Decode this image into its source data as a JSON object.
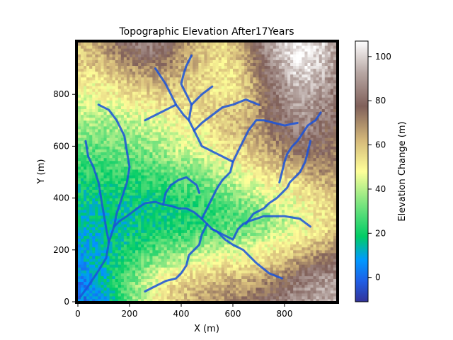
{
  "chart_data": {
    "type": "heatmap",
    "title": "Topographic Elevation After17Years",
    "xlabel": "X (m)",
    "ylabel": "Y (m)",
    "xlim": [
      0,
      1000
    ],
    "ylim": [
      0,
      1000
    ],
    "x_ticks": [
      0,
      200,
      400,
      600,
      800
    ],
    "y_ticks": [
      0,
      200,
      400,
      600,
      800
    ],
    "grid": false,
    "colormap": "terrain",
    "colorbar": {
      "label": "Elevation Change (m)",
      "range": [
        -11,
        107
      ],
      "ticks": [
        0,
        20,
        40,
        60,
        80,
        100
      ]
    },
    "field_grid": {
      "rows": 20,
      "cols": 20
    },
    "description_of_values": "Elevation in meters on a regular grid; low valleys in lower-left, high ridge in upper-right",
    "elevation_rows_bottom_to_top": [
      [
        2,
        4,
        10,
        22,
        34,
        44,
        52,
        58,
        62,
        66,
        68,
        70,
        72,
        76,
        80,
        84,
        88,
        90,
        92,
        96
      ],
      [
        4,
        6,
        14,
        24,
        34,
        42,
        50,
        56,
        60,
        62,
        64,
        66,
        68,
        70,
        74,
        80,
        86,
        88,
        90,
        94
      ],
      [
        6,
        8,
        14,
        22,
        30,
        38,
        44,
        50,
        54,
        56,
        58,
        60,
        60,
        62,
        66,
        70,
        78,
        84,
        86,
        88
      ],
      [
        8,
        10,
        14,
        20,
        26,
        32,
        36,
        40,
        44,
        46,
        48,
        50,
        50,
        52,
        56,
        60,
        66,
        72,
        76,
        80
      ],
      [
        10,
        12,
        14,
        18,
        22,
        26,
        28,
        32,
        34,
        38,
        40,
        42,
        42,
        44,
        48,
        52,
        56,
        60,
        64,
        68
      ],
      [
        12,
        12,
        14,
        16,
        18,
        20,
        22,
        24,
        26,
        28,
        30,
        32,
        34,
        36,
        40,
        44,
        48,
        52,
        56,
        60
      ],
      [
        14,
        14,
        14,
        16,
        16,
        18,
        18,
        20,
        22,
        24,
        26,
        28,
        30,
        32,
        36,
        40,
        44,
        48,
        52,
        56
      ],
      [
        16,
        16,
        16,
        18,
        18,
        18,
        20,
        20,
        22,
        24,
        26,
        28,
        32,
        36,
        40,
        44,
        46,
        50,
        54,
        58
      ],
      [
        18,
        18,
        18,
        20,
        20,
        20,
        22,
        24,
        26,
        28,
        30,
        34,
        38,
        42,
        46,
        48,
        50,
        54,
        58,
        62
      ],
      [
        22,
        22,
        22,
        24,
        24,
        24,
        26,
        28,
        30,
        32,
        36,
        40,
        44,
        48,
        50,
        52,
        56,
        60,
        64,
        66
      ],
      [
        26,
        26,
        26,
        28,
        28,
        28,
        30,
        34,
        36,
        38,
        42,
        46,
        50,
        54,
        58,
        62,
        66,
        70,
        72,
        70
      ],
      [
        30,
        30,
        30,
        32,
        32,
        34,
        36,
        40,
        42,
        44,
        48,
        52,
        56,
        60,
        64,
        70,
        74,
        78,
        76,
        72
      ],
      [
        34,
        34,
        34,
        36,
        36,
        38,
        40,
        44,
        46,
        48,
        52,
        56,
        60,
        64,
        70,
        76,
        82,
        82,
        78,
        74
      ],
      [
        38,
        38,
        38,
        40,
        40,
        42,
        44,
        48,
        50,
        52,
        56,
        60,
        62,
        66,
        74,
        80,
        86,
        86,
        82,
        78
      ],
      [
        42,
        42,
        42,
        44,
        46,
        48,
        50,
        52,
        54,
        56,
        58,
        60,
        60,
        66,
        76,
        84,
        90,
        88,
        84,
        80
      ],
      [
        46,
        46,
        48,
        50,
        52,
        54,
        56,
        56,
        56,
        56,
        54,
        54,
        56,
        64,
        78,
        86,
        92,
        92,
        88,
        82
      ],
      [
        50,
        50,
        52,
        56,
        60,
        62,
        62,
        60,
        58,
        56,
        54,
        52,
        56,
        66,
        80,
        88,
        96,
        96,
        92,
        86
      ],
      [
        54,
        56,
        58,
        62,
        66,
        70,
        70,
        66,
        62,
        58,
        54,
        52,
        58,
        70,
        84,
        92,
        100,
        100,
        96,
        88
      ],
      [
        58,
        60,
        64,
        70,
        76,
        80,
        78,
        72,
        66,
        60,
        56,
        54,
        62,
        74,
        88,
        96,
        104,
        104,
        98,
        90
      ],
      [
        60,
        62,
        68,
        76,
        82,
        86,
        84,
        76,
        68,
        62,
        58,
        56,
        66,
        78,
        90,
        100,
        106,
        106,
        100,
        92
      ]
    ]
  }
}
